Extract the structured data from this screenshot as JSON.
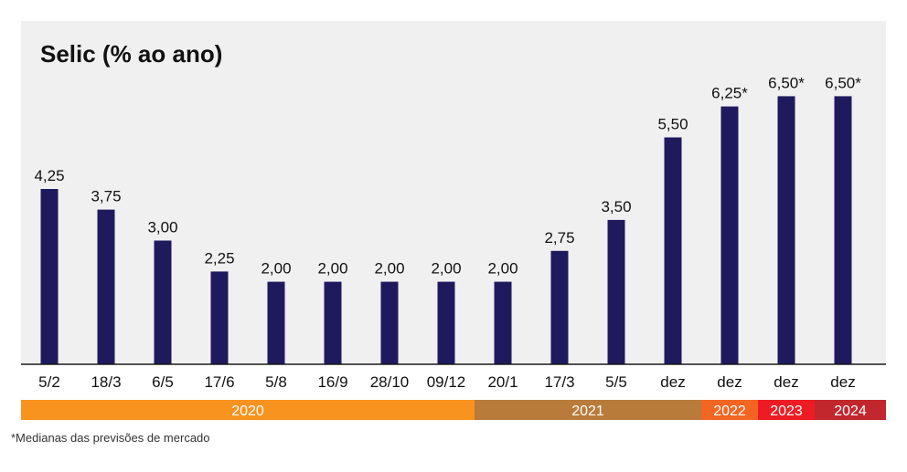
{
  "chart_data": {
    "type": "bar",
    "title": "Selic (% ao ano)",
    "categories": [
      "5/2",
      "18/3",
      "6/5",
      "17/6",
      "5/8",
      "16/9",
      "28/10",
      "09/12",
      "20/1",
      "17/3",
      "5/5",
      "dez",
      "dez",
      "dez",
      "dez"
    ],
    "values": [
      4.25,
      3.75,
      3.0,
      2.25,
      2.0,
      2.0,
      2.0,
      2.0,
      2.0,
      2.75,
      3.5,
      5.5,
      6.25,
      6.5,
      6.5
    ],
    "data_labels": [
      "4,25",
      "3,75",
      "3,00",
      "2,25",
      "2,00",
      "2,00",
      "2,00",
      "2,00",
      "2,00",
      "2,75",
      "3,50",
      "5,50",
      "6,25*",
      "6,50*",
      "6,50*"
    ],
    "ylim": [
      0,
      7
    ],
    "grid": false,
    "legend": "none",
    "year_groups": [
      {
        "label": "2020",
        "start": 0,
        "end": 7,
        "color": "#f7931e"
      },
      {
        "label": "2021",
        "start": 8,
        "end": 11,
        "color": "#b87b3a"
      },
      {
        "label": "2022",
        "start": 12,
        "end": 12,
        "color": "#f26522"
      },
      {
        "label": "2023",
        "start": 13,
        "end": 13,
        "color": "#ed1c24"
      },
      {
        "label": "2024",
        "start": 14,
        "end": 14,
        "color": "#c1272d"
      }
    ],
    "colors": {
      "plot_background": "#f0f0f0",
      "bar": "#1f1a5e",
      "axis": "#1a1a1a",
      "text": "#111111"
    }
  },
  "footnote": "*Medianas das previsões de mercado"
}
